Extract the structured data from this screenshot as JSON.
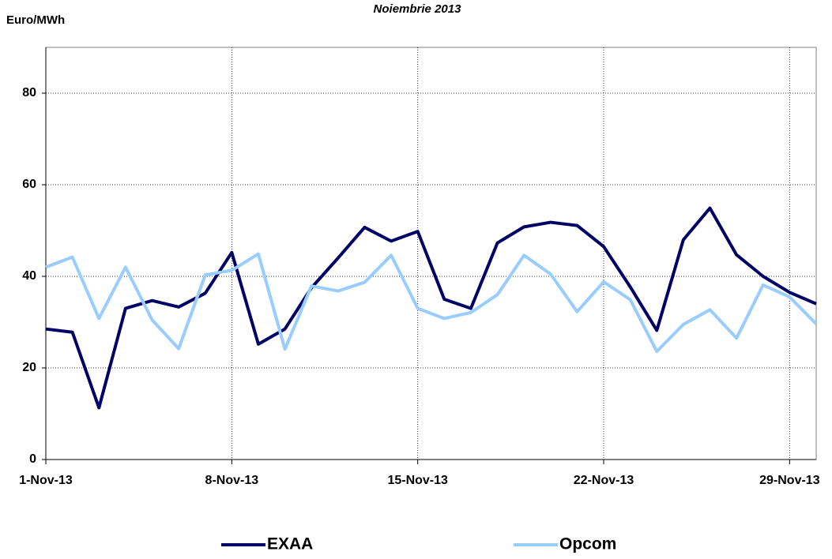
{
  "chart_data": {
    "type": "line",
    "title": "Noiembrie 2013",
    "y_label": "Euro/MWh",
    "categories": [
      "1-Nov-13",
      null,
      null,
      null,
      null,
      null,
      null,
      "8-Nov-13",
      null,
      null,
      null,
      null,
      null,
      null,
      "15-Nov-13",
      null,
      null,
      null,
      null,
      null,
      null,
      "22-Nov-13",
      null,
      null,
      null,
      null,
      null,
      null,
      "29-Nov-13",
      null
    ],
    "series": [
      {
        "name": "EXAA",
        "color": "#000066",
        "values": [
          28.5,
          27.8,
          11.3,
          33,
          34.7,
          33.3,
          36.3,
          45.2,
          25.2,
          28.5,
          37.5,
          44,
          50.7,
          47.7,
          49.8,
          35,
          33,
          47.3,
          50.8,
          51.8,
          51.1,
          46.5,
          37.7,
          28.2,
          48,
          54.9,
          44.7,
          40,
          36.5,
          34
        ]
      },
      {
        "name": "Opcom",
        "color": "#99ccff",
        "values": [
          42,
          44.2,
          30.8,
          42,
          30.5,
          24.2,
          40.3,
          41.3,
          44.9,
          24.1,
          37.9,
          36.8,
          38.7,
          44.6,
          33,
          30.8,
          32.1,
          36,
          44.6,
          40.5,
          32.3,
          38.8,
          34.9,
          23.6,
          29.5,
          32.7,
          26.5,
          38.1,
          35.5,
          29.6
        ]
      }
    ],
    "ylim": [
      0,
      90
    ],
    "yticks": [
      0,
      20,
      40,
      60,
      80
    ],
    "grid": true
  }
}
